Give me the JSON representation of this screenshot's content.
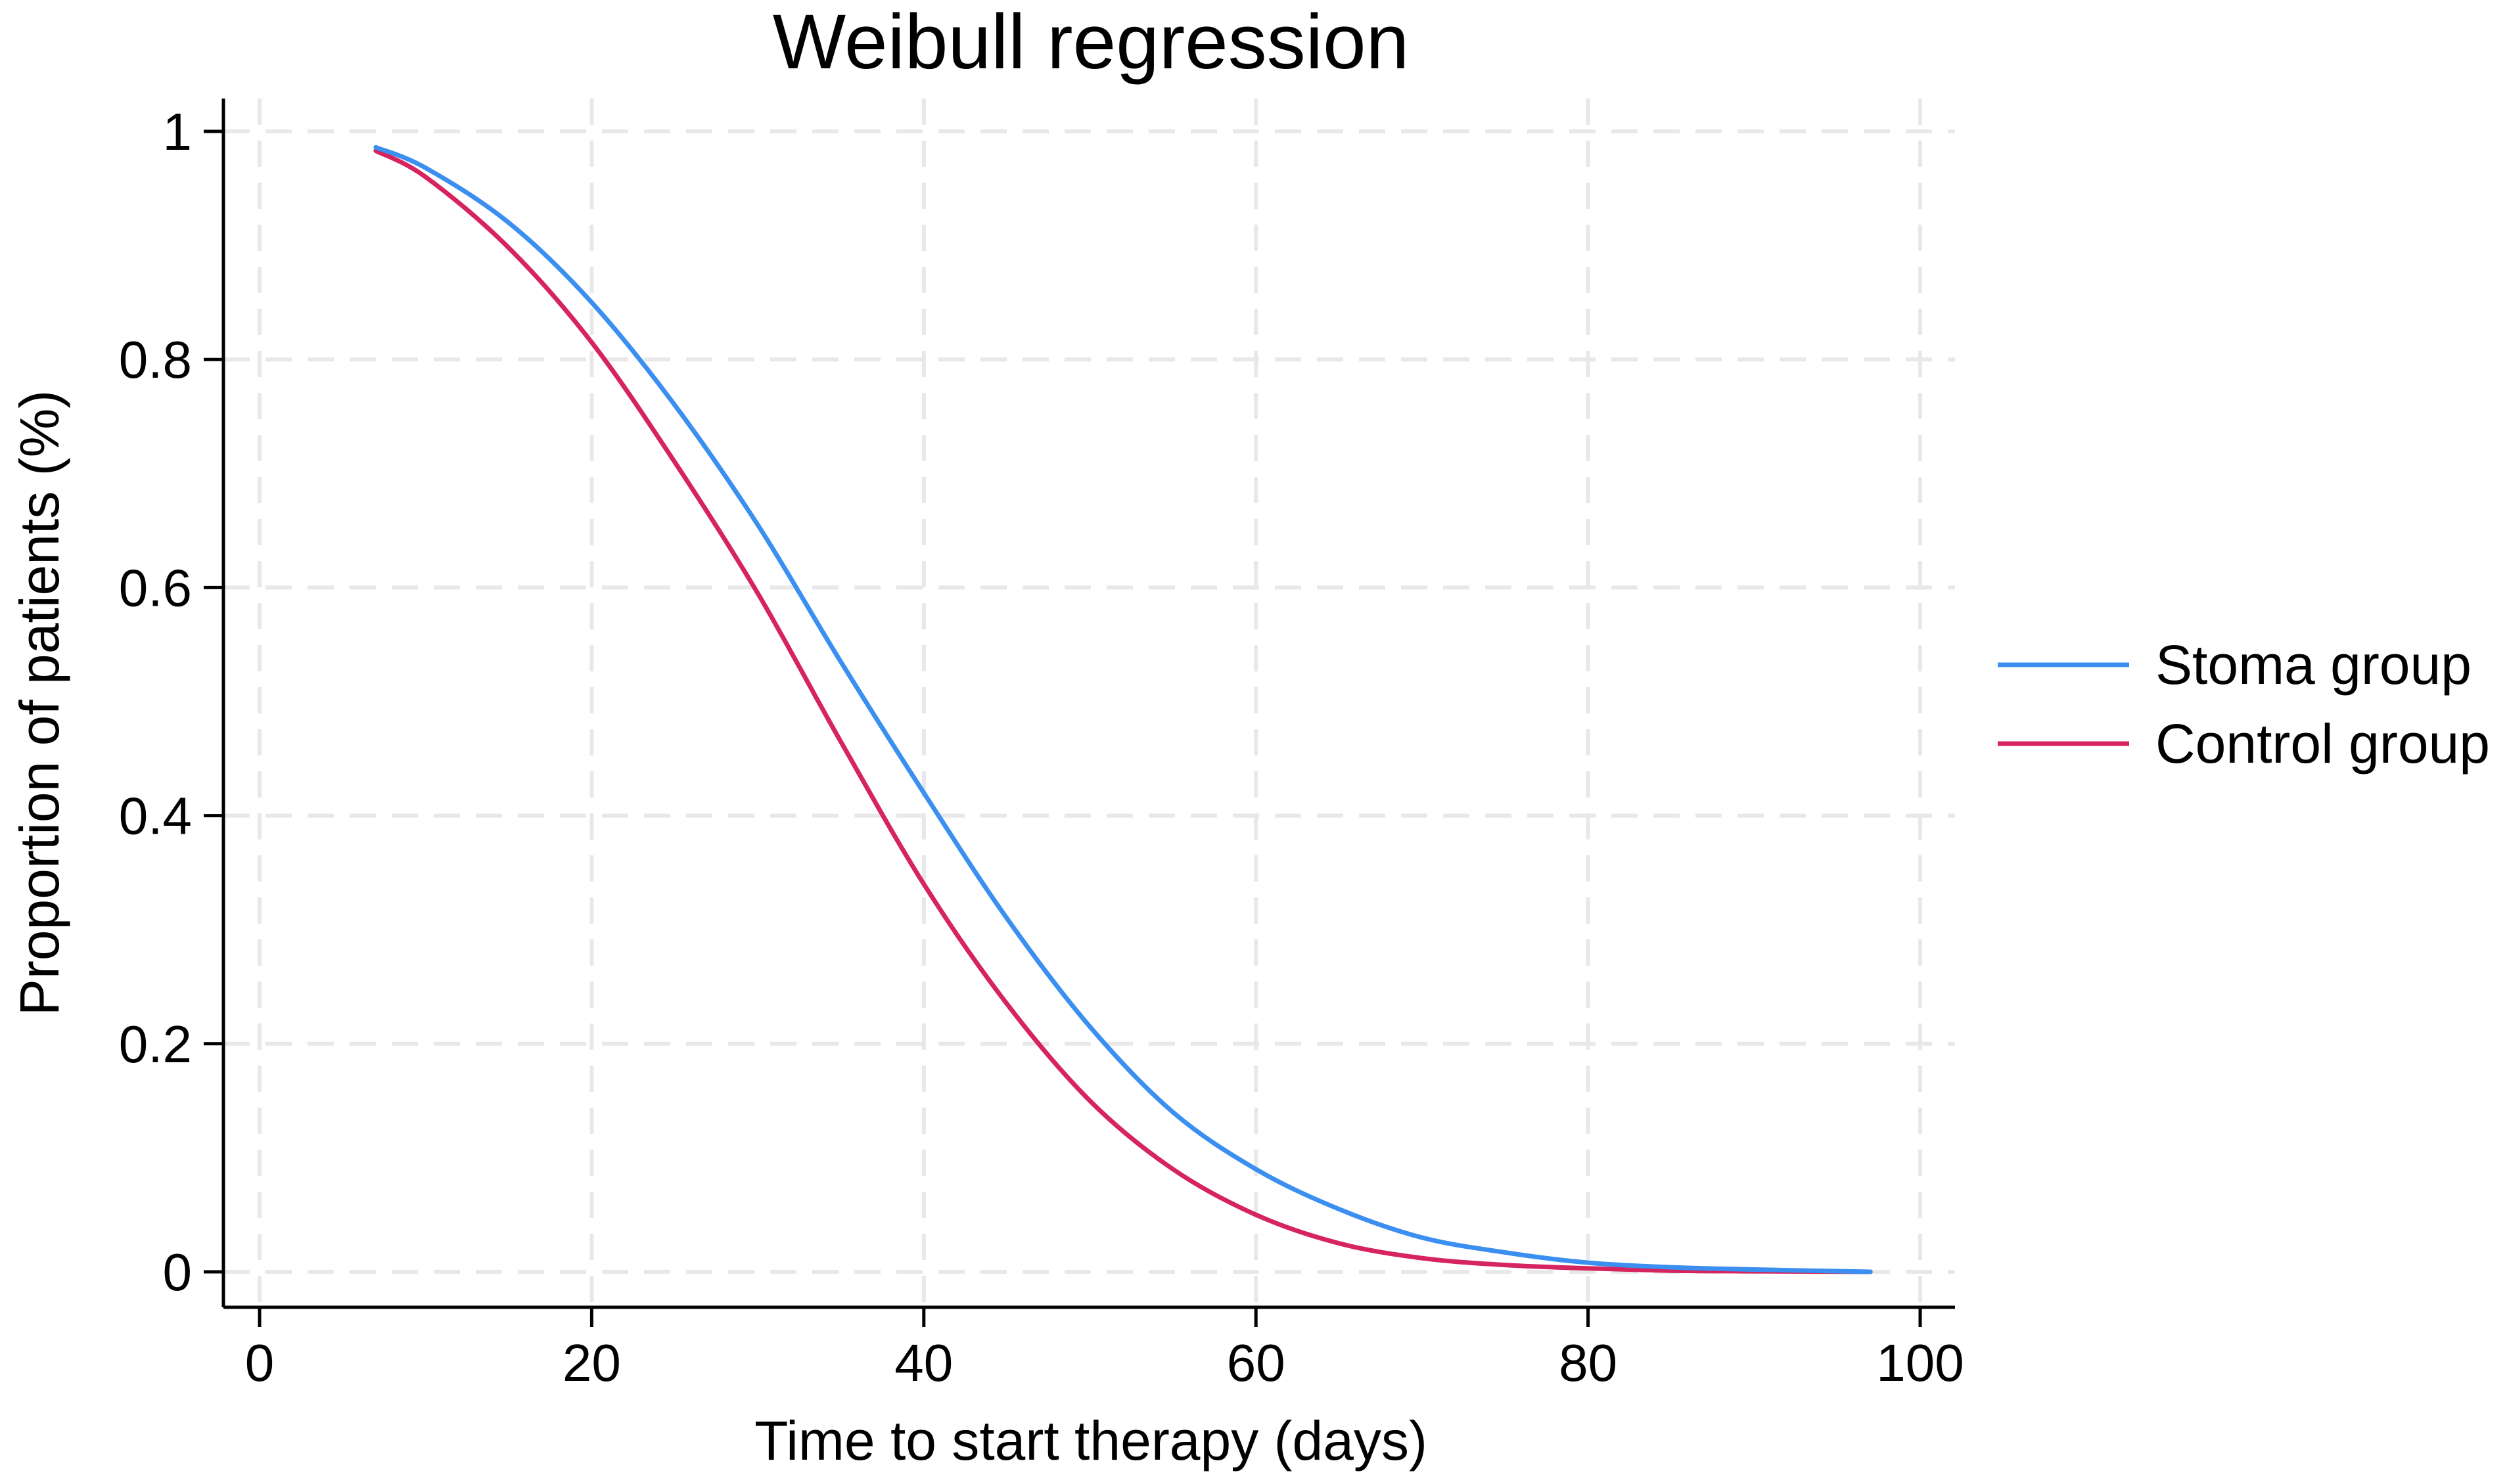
{
  "chart_data": {
    "type": "line",
    "title": "Weibull regression",
    "xlabel": "Time to start therapy (days)",
    "ylabel": "Proportion of patients (%)",
    "xlim": [
      0,
      100
    ],
    "ylim": [
      0,
      1
    ],
    "x_ticks": [
      0,
      20,
      40,
      60,
      80,
      100
    ],
    "y_ticks": [
      0,
      0.2,
      0.4,
      0.6,
      0.8,
      1
    ],
    "x_tick_labels": [
      "0",
      "20",
      "40",
      "60",
      "80",
      "100"
    ],
    "y_tick_labels": [
      "0",
      "0.2",
      "0.4",
      "0.6",
      "0.8",
      "1"
    ],
    "grid": true,
    "legend_position": "right",
    "x": [
      7,
      10,
      15,
      20,
      25,
      30,
      35,
      40,
      45,
      50,
      55,
      60,
      65,
      70,
      75,
      80,
      85,
      90,
      97
    ],
    "series": [
      {
        "name": "Stoma group",
        "color": "#3a8ff0",
        "values": [
          0.986,
          0.968,
          0.92,
          0.85,
          0.76,
          0.655,
          0.535,
          0.42,
          0.31,
          0.215,
          0.14,
          0.09,
          0.055,
          0.03,
          0.017,
          0.008,
          0.004,
          0.002,
          0.0
        ]
      },
      {
        "name": "Control group",
        "color": "#d6245e",
        "values": [
          0.983,
          0.96,
          0.898,
          0.815,
          0.71,
          0.595,
          0.465,
          0.34,
          0.235,
          0.15,
          0.09,
          0.05,
          0.025,
          0.012,
          0.006,
          0.003,
          0.001,
          0.0005,
          0.0
        ]
      }
    ]
  }
}
